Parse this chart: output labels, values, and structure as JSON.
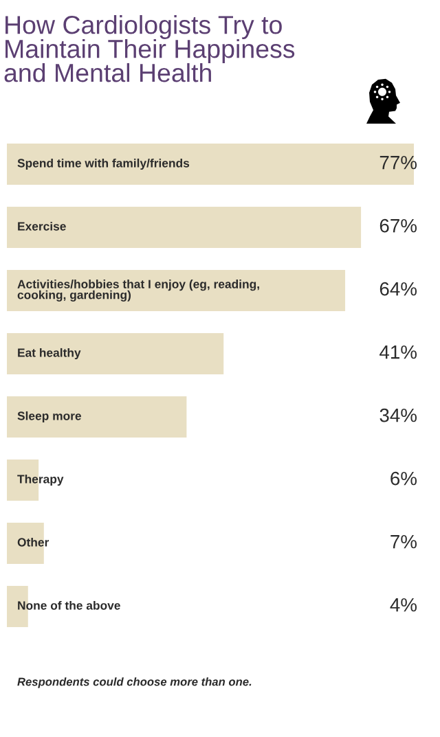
{
  "chart_data": {
    "type": "bar",
    "orientation": "horizontal",
    "title": "How Cardiologists Try to\nMaintain Their Happiness\nand Mental Health",
    "categories": [
      "Spend time with family/friends",
      "Exercise",
      "Activities/hobbies that I enjoy (eg, reading,\ncooking, gardening)",
      "Eat healthy",
      "Sleep more",
      "Therapy",
      "Other",
      "None of the above"
    ],
    "values": [
      77,
      67,
      64,
      41,
      34,
      6,
      7,
      4
    ],
    "color": "#e8dfc3",
    "value_labels": [
      "77%",
      "67%",
      "64%",
      "41%",
      "34%",
      "6%",
      "7%",
      "4%"
    ],
    "annotations": [
      "Respondents could choose more than one."
    ]
  }
}
